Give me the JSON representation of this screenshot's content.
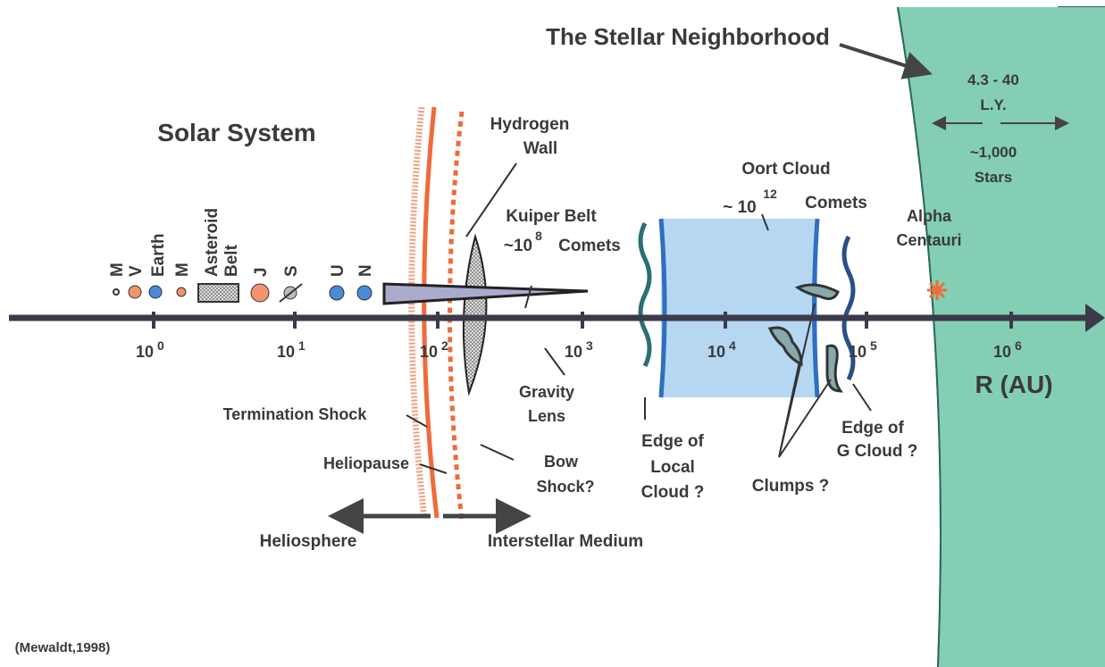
{
  "title": "The Stellar Neighborhood",
  "solar_system": "Solar System",
  "planets": [
    "M",
    "V",
    "Earth",
    "M",
    "Asteroid",
    "Belt",
    "J",
    "S",
    "U",
    "N"
  ],
  "hydrogen_wall": [
    "Hydrogen",
    "Wall"
  ],
  "kuiper_belt": {
    "name": "Kuiper Belt",
    "count": "~10",
    "exponent": "8",
    "unit": "Comets"
  },
  "oort_cloud": {
    "name": "Oort Cloud",
    "count": "~ 10",
    "exponent": "12",
    "unit": "Comets"
  },
  "neighborhood": [
    "4.3 - 40",
    "L.Y.",
    "~1,000",
    "Stars"
  ],
  "alpha_centauri": [
    "Alpha",
    "Centauri"
  ],
  "axis": {
    "ticks": [
      {
        "base": "10",
        "exponent": "0"
      },
      {
        "base": "10",
        "exponent": "1"
      },
      {
        "base": "10",
        "exponent": "2"
      },
      {
        "base": "10",
        "exponent": "3"
      },
      {
        "base": "10",
        "exponent": "4"
      },
      {
        "base": "10",
        "exponent": "5"
      },
      {
        "base": "10",
        "exponent": "6"
      }
    ],
    "label": "R (AU)"
  },
  "labels": {
    "termination_shock": "Termination Shock",
    "heliopause": "Heliopause",
    "bow_shock": [
      "Bow",
      "Shock?"
    ],
    "gravity_lens": [
      "Gravity",
      "Lens"
    ],
    "edge_local_cloud": [
      "Edge of",
      "Local",
      "Cloud ?"
    ],
    "clumps": "Clumps ?",
    "edge_g_cloud": [
      "Edge of",
      "G Cloud ?"
    ],
    "heliosphere": "Heliosphere",
    "interstellar_medium": "Interstellar Medium"
  },
  "source": "(Mewaldt,1998)"
}
